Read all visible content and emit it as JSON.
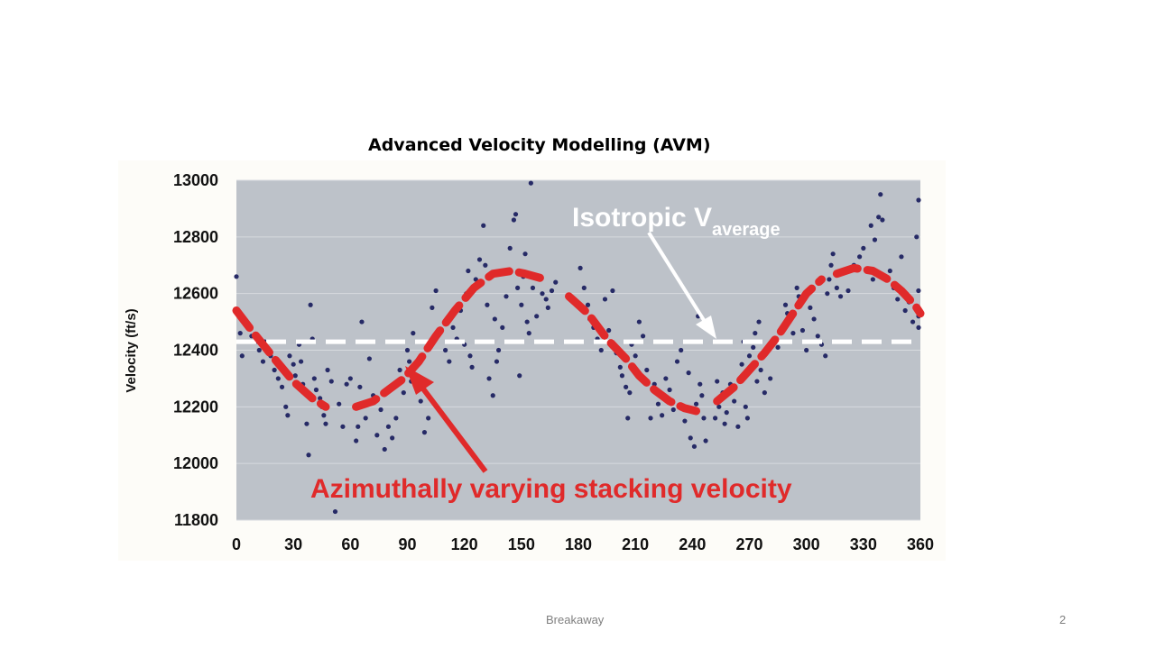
{
  "slide": {
    "title": "Advanced Velocity Modelling (AVM)",
    "footer": "Breakaway",
    "page_number": "2"
  },
  "colors": {
    "plot_background": "#bdc2c9",
    "gridline": "#d7dade",
    "data_points": "#262a66",
    "avm_curve": "#e02a2a",
    "isotropic_line": "#ffffff",
    "axis_text": "#111111"
  },
  "chart_data": {
    "type": "scatter",
    "title": "",
    "xlabel": "",
    "ylabel": "Velocity (ft/s)",
    "xlim": [
      0,
      360
    ],
    "ylim": [
      11800,
      13000
    ],
    "x_ticks": [
      0,
      30,
      60,
      90,
      120,
      150,
      180,
      210,
      240,
      270,
      300,
      330,
      360
    ],
    "x_tick_labels": [
      "0",
      "30",
      "60",
      "90",
      "120",
      "150",
      "180",
      "210",
      "240",
      "270",
      "300",
      "330",
      "360"
    ],
    "y_ticks": [
      11800,
      12000,
      12200,
      12400,
      12600,
      12800,
      13000
    ],
    "y_tick_labels": [
      "11800",
      "12000",
      "12200",
      "12400",
      "12600",
      "12800",
      "13000"
    ],
    "grid": true,
    "series": [
      {
        "name": "",
        "style": "scatter",
        "points": [
          [
            0,
            12660
          ],
          [
            1,
            12530
          ],
          [
            2,
            12460
          ],
          [
            3,
            12380
          ],
          [
            5,
            12500
          ],
          [
            8,
            12450
          ],
          [
            10,
            12430
          ],
          [
            12,
            12400
          ],
          [
            14,
            12360
          ],
          [
            15,
            12430
          ],
          [
            18,
            12380
          ],
          [
            20,
            12330
          ],
          [
            22,
            12300
          ],
          [
            24,
            12270
          ],
          [
            26,
            12200
          ],
          [
            27,
            12170
          ],
          [
            28,
            12380
          ],
          [
            30,
            12350
          ],
          [
            31,
            12310
          ],
          [
            33,
            12420
          ],
          [
            34,
            12360
          ],
          [
            35,
            12280
          ],
          [
            36,
            12250
          ],
          [
            37,
            12140
          ],
          [
            38,
            12030
          ],
          [
            39,
            12560
          ],
          [
            40,
            12440
          ],
          [
            41,
            12300
          ],
          [
            42,
            12260
          ],
          [
            44,
            12230
          ],
          [
            45,
            12200
          ],
          [
            46,
            12170
          ],
          [
            47,
            12140
          ],
          [
            48,
            12330
          ],
          [
            50,
            12290
          ],
          [
            52,
            11830
          ],
          [
            54,
            12210
          ],
          [
            56,
            12130
          ],
          [
            58,
            12280
          ],
          [
            60,
            12300
          ],
          [
            63,
            12080
          ],
          [
            64,
            12130
          ],
          [
            65,
            12270
          ],
          [
            66,
            12500
          ],
          [
            67,
            12210
          ],
          [
            68,
            12160
          ],
          [
            70,
            12370
          ],
          [
            72,
            12240
          ],
          [
            74,
            12100
          ],
          [
            76,
            12190
          ],
          [
            78,
            12050
          ],
          [
            80,
            12130
          ],
          [
            82,
            12090
          ],
          [
            84,
            12160
          ],
          [
            86,
            12330
          ],
          [
            88,
            12250
          ],
          [
            90,
            12400
          ],
          [
            91,
            12360
          ],
          [
            92,
            12290
          ],
          [
            93,
            12460
          ],
          [
            95,
            12270
          ],
          [
            97,
            12220
          ],
          [
            99,
            12110
          ],
          [
            101,
            12160
          ],
          [
            103,
            12550
          ],
          [
            105,
            12610
          ],
          [
            107,
            12470
          ],
          [
            110,
            12400
          ],
          [
            112,
            12360
          ],
          [
            114,
            12480
          ],
          [
            116,
            12440
          ],
          [
            118,
            12540
          ],
          [
            120,
            12420
          ],
          [
            121,
            12600
          ],
          [
            122,
            12680
          ],
          [
            123,
            12380
          ],
          [
            124,
            12340
          ],
          [
            126,
            12650
          ],
          [
            128,
            12720
          ],
          [
            130,
            12840
          ],
          [
            131,
            12700
          ],
          [
            132,
            12560
          ],
          [
            133,
            12300
          ],
          [
            135,
            12240
          ],
          [
            136,
            12510
          ],
          [
            137,
            12360
          ],
          [
            138,
            12400
          ],
          [
            140,
            12480
          ],
          [
            142,
            12590
          ],
          [
            144,
            12760
          ],
          [
            146,
            12860
          ],
          [
            147,
            12880
          ],
          [
            148,
            12620
          ],
          [
            149,
            12310
          ],
          [
            150,
            12560
          ],
          [
            151,
            12660
          ],
          [
            152,
            12740
          ],
          [
            153,
            12500
          ],
          [
            154,
            12460
          ],
          [
            155,
            12990
          ],
          [
            156,
            12620
          ],
          [
            158,
            12520
          ],
          [
            160,
            12660
          ],
          [
            161,
            12600
          ],
          [
            163,
            12580
          ],
          [
            164,
            12550
          ],
          [
            166,
            12610
          ],
          [
            168,
            12640
          ],
          [
            181,
            12690
          ],
          [
            183,
            12620
          ],
          [
            185,
            12560
          ],
          [
            186,
            12510
          ],
          [
            188,
            12480
          ],
          [
            190,
            12440
          ],
          [
            192,
            12400
          ],
          [
            194,
            12580
          ],
          [
            196,
            12470
          ],
          [
            198,
            12610
          ],
          [
            200,
            12390
          ],
          [
            202,
            12340
          ],
          [
            203,
            12310
          ],
          [
            205,
            12270
          ],
          [
            206,
            12160
          ],
          [
            207,
            12250
          ],
          [
            208,
            12420
          ],
          [
            210,
            12380
          ],
          [
            212,
            12500
          ],
          [
            214,
            12450
          ],
          [
            216,
            12330
          ],
          [
            218,
            12160
          ],
          [
            220,
            12280
          ],
          [
            222,
            12210
          ],
          [
            224,
            12170
          ],
          [
            226,
            12300
          ],
          [
            228,
            12260
          ],
          [
            230,
            12190
          ],
          [
            232,
            12360
          ],
          [
            234,
            12400
          ],
          [
            236,
            12150
          ],
          [
            238,
            12320
          ],
          [
            239,
            12090
          ],
          [
            240,
            12190
          ],
          [
            241,
            12060
          ],
          [
            242,
            12210
          ],
          [
            243,
            12520
          ],
          [
            244,
            12280
          ],
          [
            245,
            12240
          ],
          [
            246,
            12160
          ],
          [
            247,
            12080
          ],
          [
            252,
            12160
          ],
          [
            253,
            12290
          ],
          [
            254,
            12200
          ],
          [
            256,
            12250
          ],
          [
            257,
            12140
          ],
          [
            258,
            12180
          ],
          [
            260,
            12280
          ],
          [
            262,
            12220
          ],
          [
            264,
            12130
          ],
          [
            266,
            12350
          ],
          [
            267,
            12430
          ],
          [
            268,
            12200
          ],
          [
            269,
            12160
          ],
          [
            270,
            12380
          ],
          [
            271,
            12330
          ],
          [
            272,
            12410
          ],
          [
            273,
            12460
          ],
          [
            274,
            12290
          ],
          [
            275,
            12500
          ],
          [
            276,
            12330
          ],
          [
            278,
            12250
          ],
          [
            281,
            12300
          ],
          [
            283,
            12440
          ],
          [
            285,
            12410
          ],
          [
            287,
            12480
          ],
          [
            289,
            12560
          ],
          [
            290,
            12530
          ],
          [
            291,
            12500
          ],
          [
            293,
            12460
          ],
          [
            295,
            12620
          ],
          [
            296,
            12590
          ],
          [
            298,
            12470
          ],
          [
            300,
            12400
          ],
          [
            302,
            12550
          ],
          [
            304,
            12510
          ],
          [
            306,
            12450
          ],
          [
            308,
            12420
          ],
          [
            310,
            12380
          ],
          [
            311,
            12600
          ],
          [
            312,
            12650
          ],
          [
            313,
            12700
          ],
          [
            314,
            12740
          ],
          [
            316,
            12620
          ],
          [
            318,
            12590
          ],
          [
            322,
            12610
          ],
          [
            325,
            12700
          ],
          [
            328,
            12730
          ],
          [
            330,
            12760
          ],
          [
            332,
            12680
          ],
          [
            334,
            12840
          ],
          [
            335,
            12650
          ],
          [
            336,
            12790
          ],
          [
            338,
            12870
          ],
          [
            339,
            12950
          ],
          [
            340,
            12860
          ],
          [
            342,
            12650
          ],
          [
            344,
            12680
          ],
          [
            346,
            12620
          ],
          [
            348,
            12580
          ],
          [
            350,
            12730
          ],
          [
            352,
            12540
          ],
          [
            354,
            12570
          ],
          [
            356,
            12500
          ],
          [
            358,
            12800
          ],
          [
            359,
            12610
          ],
          [
            360,
            12930
          ],
          [
            362,
            12480
          ],
          [
            363,
            12520
          ]
        ]
      },
      {
        "name": "",
        "style": "dashed-line",
        "points": [
          [
            0,
            12430
          ],
          [
            360,
            12430
          ]
        ]
      },
      {
        "name": "",
        "style": "dashed-line",
        "segments": [
          [
            [
              0,
              12540
            ],
            [
              8,
              12470
            ],
            [
              20,
              12370
            ],
            [
              30,
              12290
            ],
            [
              40,
              12230
            ],
            [
              47,
              12200
            ]
          ],
          [
            [
              63,
              12200
            ],
            [
              72,
              12220
            ],
            [
              80,
              12260
            ],
            [
              88,
              12300
            ],
            [
              96,
              12360
            ],
            [
              105,
              12450
            ],
            [
              115,
              12540
            ],
            [
              125,
              12620
            ],
            [
              135,
              12670
            ],
            [
              145,
              12680
            ],
            [
              152,
              12670
            ],
            [
              160,
              12655
            ]
          ],
          [
            [
              175,
              12590
            ],
            [
              185,
              12530
            ],
            [
              195,
              12440
            ],
            [
              205,
              12370
            ],
            [
              212,
              12310
            ],
            [
              220,
              12260
            ],
            [
              228,
              12220
            ],
            [
              236,
              12195
            ],
            [
              242,
              12185
            ]
          ],
          [
            [
              253,
              12220
            ],
            [
              262,
              12270
            ],
            [
              270,
              12330
            ],
            [
              278,
              12390
            ],
            [
              285,
              12450
            ],
            [
              292,
              12520
            ],
            [
              300,
              12600
            ],
            [
              308,
              12650
            ]
          ],
          [
            [
              316,
              12670
            ],
            [
              325,
              12690
            ],
            [
              335,
              12680
            ],
            [
              343,
              12650
            ],
            [
              350,
              12610
            ],
            [
              357,
              12560
            ],
            [
              362,
              12530
            ]
          ]
        ]
      }
    ],
    "annotations": [
      {
        "text_main": "Isotropic V",
        "text_sub": "average"
      },
      {
        "text": "Azimuthally varying stacking velocity"
      }
    ]
  }
}
